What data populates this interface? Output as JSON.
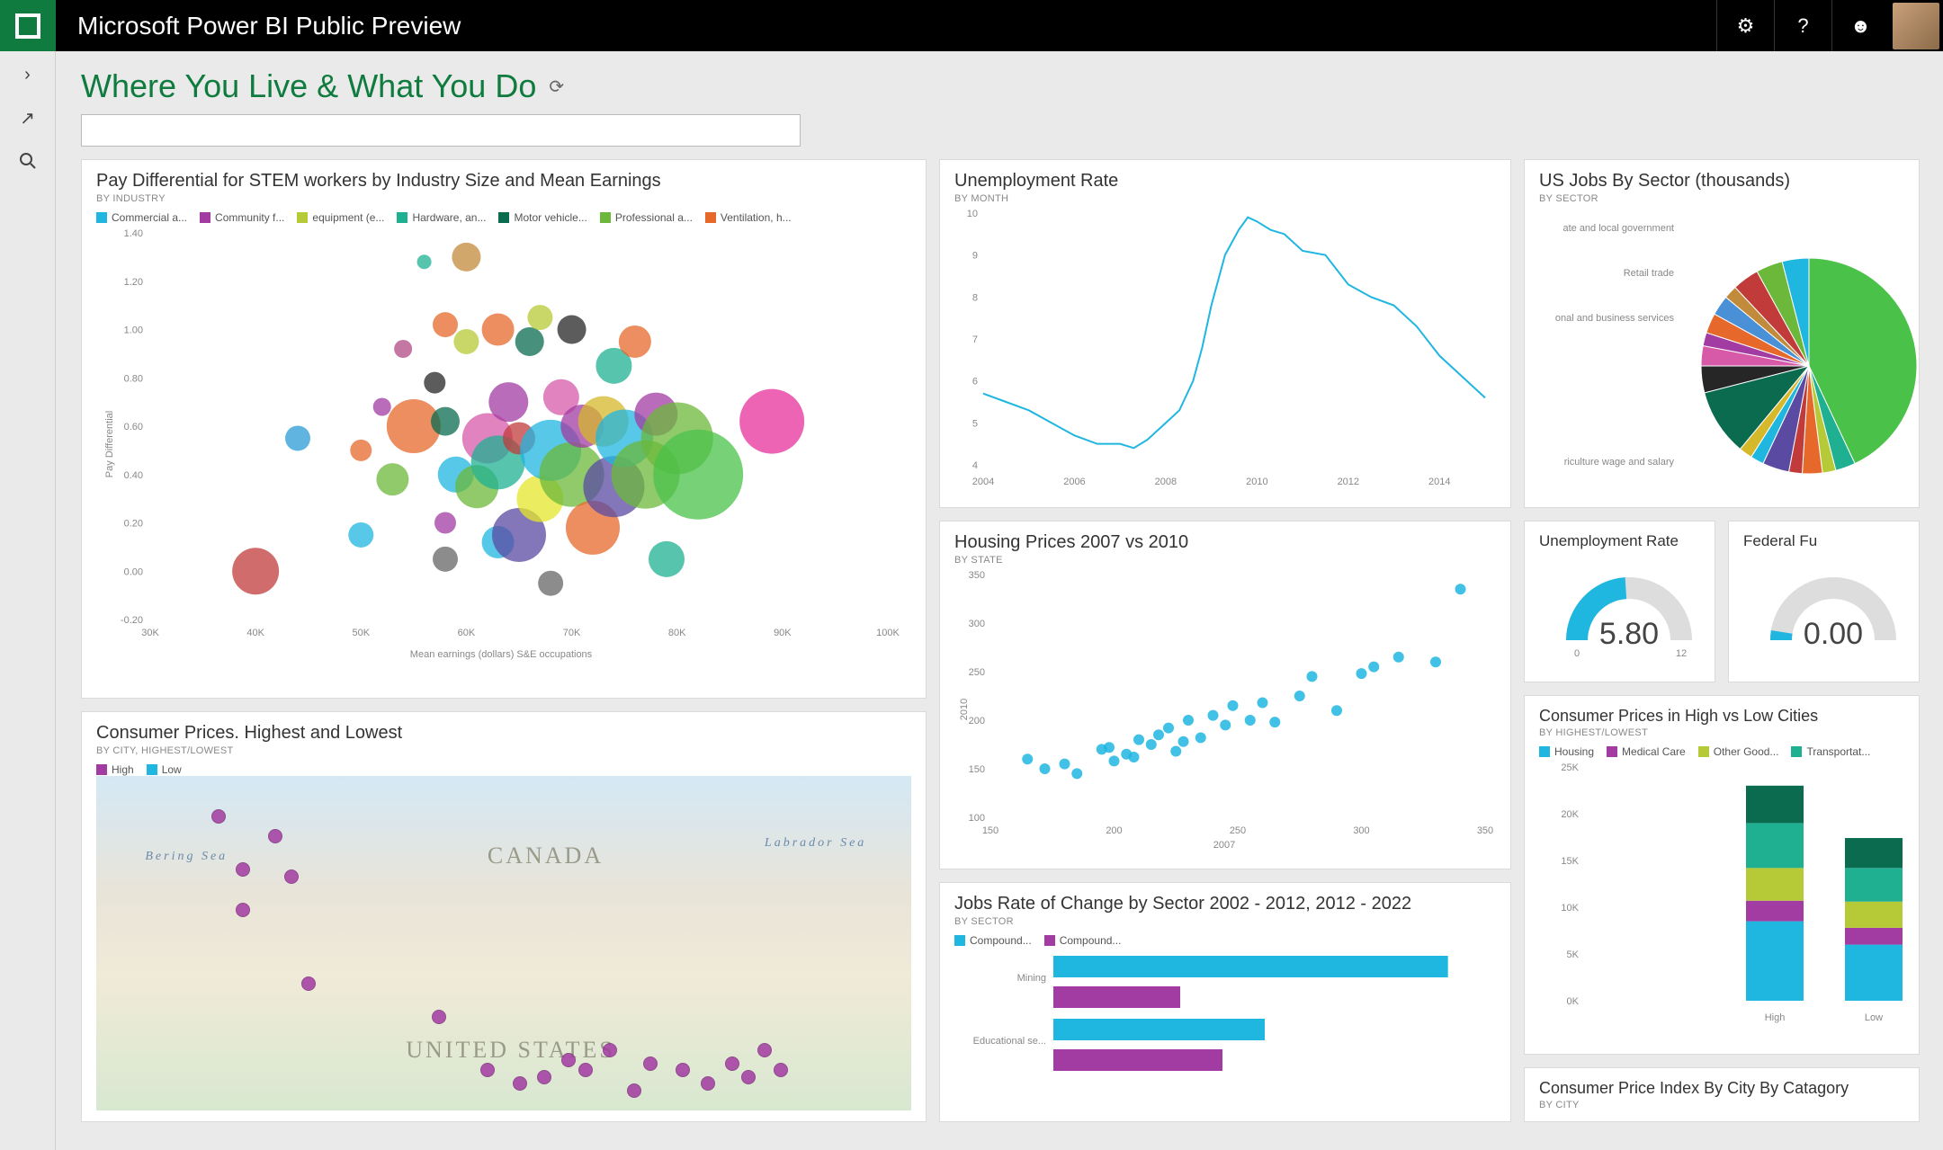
{
  "app": {
    "title": "Microsoft Power BI Public Preview"
  },
  "page": {
    "title": "Where You Live & What You Do"
  },
  "colors": {
    "accent": "#0f7b3e",
    "tile_bg": "#ffffff",
    "page_bg": "#eaeaea",
    "grid": "#e0e0e0",
    "axis": "#888888",
    "primary": "#1fb6e0",
    "secondary": "#a23ba2"
  },
  "pay_diff": {
    "title": "Pay Differential for STEM workers by Industry Size and Mean Earnings",
    "sub": "BY INDUSTRY",
    "xlabel": "Mean earnings (dollars) S&E occupations",
    "ylabel": "Pay Differential",
    "xlim": [
      30000,
      100000
    ],
    "xtick_step": 10000,
    "ylim": [
      -0.2,
      1.4
    ],
    "ytick_step": 0.2,
    "legend": [
      {
        "label": "Commercial a...",
        "color": "#1fb6e0"
      },
      {
        "label": "Community f...",
        "color": "#a23ba2"
      },
      {
        "label": "equipment (e...",
        "color": "#b6c936"
      },
      {
        "label": "Hardware, an...",
        "color": "#1fb091"
      },
      {
        "label": "Motor vehicle...",
        "color": "#0a6b4f"
      },
      {
        "label": "Professional a...",
        "color": "#6bb83a"
      },
      {
        "label": "Ventilation, h...",
        "color": "#e6682b"
      }
    ],
    "bubbles": [
      {
        "x": 40000,
        "y": 0.0,
        "r": 26,
        "c": "#c23b3b"
      },
      {
        "x": 44000,
        "y": 0.55,
        "r": 14,
        "c": "#2b9bd6"
      },
      {
        "x": 50000,
        "y": 0.5,
        "r": 12,
        "c": "#e6682b"
      },
      {
        "x": 50000,
        "y": 0.15,
        "r": 14,
        "c": "#1fb6e0"
      },
      {
        "x": 52000,
        "y": 0.68,
        "r": 10,
        "c": "#a23ba2"
      },
      {
        "x": 53000,
        "y": 0.38,
        "r": 18,
        "c": "#6bb83a"
      },
      {
        "x": 54000,
        "y": 0.92,
        "r": 10,
        "c": "#b24a86"
      },
      {
        "x": 55000,
        "y": 0.6,
        "r": 30,
        "c": "#e6682b"
      },
      {
        "x": 56000,
        "y": 1.28,
        "r": 8,
        "c": "#1fb091"
      },
      {
        "x": 57000,
        "y": 0.78,
        "r": 12,
        "c": "#262626"
      },
      {
        "x": 58000,
        "y": 0.2,
        "r": 12,
        "c": "#a23ba2"
      },
      {
        "x": 58000,
        "y": 0.62,
        "r": 16,
        "c": "#0a6b4f"
      },
      {
        "x": 58000,
        "y": 1.02,
        "r": 14,
        "c": "#e6682b"
      },
      {
        "x": 58000,
        "y": 0.05,
        "r": 14,
        "c": "#666"
      },
      {
        "x": 59000,
        "y": 0.4,
        "r": 20,
        "c": "#1fb6e0"
      },
      {
        "x": 60000,
        "y": 0.95,
        "r": 14,
        "c": "#b6c936"
      },
      {
        "x": 60000,
        "y": 1.3,
        "r": 16,
        "c": "#c28a3b"
      },
      {
        "x": 61000,
        "y": 0.35,
        "r": 24,
        "c": "#6bb83a"
      },
      {
        "x": 62000,
        "y": 0.55,
        "r": 28,
        "c": "#d65aa8"
      },
      {
        "x": 63000,
        "y": 0.45,
        "r": 30,
        "c": "#1fb091"
      },
      {
        "x": 63000,
        "y": 0.12,
        "r": 18,
        "c": "#1fb6e0"
      },
      {
        "x": 63000,
        "y": 1.0,
        "r": 18,
        "c": "#e6682b"
      },
      {
        "x": 64000,
        "y": 0.7,
        "r": 22,
        "c": "#a23ba2"
      },
      {
        "x": 65000,
        "y": 0.15,
        "r": 30,
        "c": "#5a4aa2"
      },
      {
        "x": 65000,
        "y": 0.55,
        "r": 18,
        "c": "#c23b3b"
      },
      {
        "x": 66000,
        "y": 0.95,
        "r": 16,
        "c": "#0a6b4f"
      },
      {
        "x": 67000,
        "y": 0.3,
        "r": 26,
        "c": "#e6e62b"
      },
      {
        "x": 67000,
        "y": 1.05,
        "r": 14,
        "c": "#b6c936"
      },
      {
        "x": 68000,
        "y": 0.5,
        "r": 34,
        "c": "#1fb6e0"
      },
      {
        "x": 68000,
        "y": -0.05,
        "r": 14,
        "c": "#666"
      },
      {
        "x": 69000,
        "y": 0.72,
        "r": 20,
        "c": "#d65aa8"
      },
      {
        "x": 70000,
        "y": 0.4,
        "r": 36,
        "c": "#6bb83a"
      },
      {
        "x": 70000,
        "y": 1.0,
        "r": 16,
        "c": "#262626"
      },
      {
        "x": 71000,
        "y": 0.6,
        "r": 24,
        "c": "#a23ba2"
      },
      {
        "x": 72000,
        "y": 0.18,
        "r": 30,
        "c": "#e6682b"
      },
      {
        "x": 73000,
        "y": 0.62,
        "r": 28,
        "c": "#d6b82b"
      },
      {
        "x": 74000,
        "y": 0.35,
        "r": 34,
        "c": "#5a4aa2"
      },
      {
        "x": 74000,
        "y": 0.85,
        "r": 20,
        "c": "#1fb091"
      },
      {
        "x": 75000,
        "y": 0.55,
        "r": 32,
        "c": "#1fb6e0"
      },
      {
        "x": 76000,
        "y": 0.95,
        "r": 18,
        "c": "#e6682b"
      },
      {
        "x": 77000,
        "y": 0.4,
        "r": 38,
        "c": "#6bb83a"
      },
      {
        "x": 78000,
        "y": 0.65,
        "r": 24,
        "c": "#a23ba2"
      },
      {
        "x": 79000,
        "y": 0.05,
        "r": 20,
        "c": "#1fb091"
      },
      {
        "x": 80000,
        "y": 0.55,
        "r": 40,
        "c": "#6bb83a"
      },
      {
        "x": 82000,
        "y": 0.4,
        "r": 50,
        "c": "#4ac24a"
      },
      {
        "x": 89000,
        "y": 0.62,
        "r": 36,
        "c": "#e6309a"
      }
    ]
  },
  "consumer_map": {
    "title": "Consumer Prices. Highest and Lowest",
    "sub": "BY CITY, HIGHEST/LOWEST",
    "legend": [
      {
        "label": "High",
        "color": "#a23ba2"
      },
      {
        "label": "Low",
        "color": "#1fb6e0"
      }
    ],
    "labels": {
      "canada": "CANADA",
      "us": "UNITED STATES",
      "bering": "Bering Sea",
      "labrador": "Labrador Sea"
    },
    "points": [
      {
        "x": 0.15,
        "y": 0.12,
        "c": "#a23ba2"
      },
      {
        "x": 0.22,
        "y": 0.18,
        "c": "#a23ba2"
      },
      {
        "x": 0.18,
        "y": 0.28,
        "c": "#a23ba2"
      },
      {
        "x": 0.24,
        "y": 0.3,
        "c": "#a23ba2"
      },
      {
        "x": 0.18,
        "y": 0.4,
        "c": "#a23ba2"
      },
      {
        "x": 0.26,
        "y": 0.62,
        "c": "#a23ba2"
      },
      {
        "x": 0.42,
        "y": 0.72,
        "c": "#a23ba2"
      },
      {
        "x": 0.48,
        "y": 0.88,
        "c": "#a23ba2"
      },
      {
        "x": 0.52,
        "y": 0.92,
        "c": "#a23ba2"
      },
      {
        "x": 0.55,
        "y": 0.9,
        "c": "#a23ba2"
      },
      {
        "x": 0.58,
        "y": 0.85,
        "c": "#a23ba2"
      },
      {
        "x": 0.6,
        "y": 0.88,
        "c": "#a23ba2"
      },
      {
        "x": 0.63,
        "y": 0.82,
        "c": "#a23ba2"
      },
      {
        "x": 0.66,
        "y": 0.94,
        "c": "#a23ba2"
      },
      {
        "x": 0.68,
        "y": 0.86,
        "c": "#a23ba2"
      },
      {
        "x": 0.72,
        "y": 0.88,
        "c": "#a23ba2"
      },
      {
        "x": 0.75,
        "y": 0.92,
        "c": "#a23ba2"
      },
      {
        "x": 0.78,
        "y": 0.86,
        "c": "#a23ba2"
      },
      {
        "x": 0.8,
        "y": 0.9,
        "c": "#a23ba2"
      },
      {
        "x": 0.82,
        "y": 0.82,
        "c": "#a23ba2"
      },
      {
        "x": 0.84,
        "y": 0.88,
        "c": "#a23ba2"
      }
    ]
  },
  "unemployment": {
    "title": "Unemployment Rate",
    "sub": "BY MONTH",
    "xlim": [
      2004,
      2015
    ],
    "xtick_step": 2,
    "ylim": [
      4,
      10
    ],
    "ytick_step": 1,
    "line_color": "#1fb6e0",
    "points": [
      [
        2004,
        5.7
      ],
      [
        2004.5,
        5.5
      ],
      [
        2005,
        5.3
      ],
      [
        2005.5,
        5.0
      ],
      [
        2006,
        4.7
      ],
      [
        2006.5,
        4.5
      ],
      [
        2007,
        4.5
      ],
      [
        2007.3,
        4.4
      ],
      [
        2007.6,
        4.6
      ],
      [
        2008,
        5.0
      ],
      [
        2008.3,
        5.3
      ],
      [
        2008.6,
        6.0
      ],
      [
        2008.8,
        6.8
      ],
      [
        2009,
        7.8
      ],
      [
        2009.3,
        9.0
      ],
      [
        2009.6,
        9.6
      ],
      [
        2009.8,
        9.9
      ],
      [
        2010,
        9.8
      ],
      [
        2010.3,
        9.6
      ],
      [
        2010.6,
        9.5
      ],
      [
        2011,
        9.1
      ],
      [
        2011.5,
        9.0
      ],
      [
        2012,
        8.3
      ],
      [
        2012.5,
        8.0
      ],
      [
        2013,
        7.8
      ],
      [
        2013.5,
        7.3
      ],
      [
        2014,
        6.6
      ],
      [
        2014.5,
        6.1
      ],
      [
        2015,
        5.6
      ]
    ]
  },
  "housing": {
    "title": "Housing Prices 2007 vs 2010",
    "sub": "BY STATE",
    "xlabel": "2007",
    "ylabel": "2010",
    "xlim": [
      150,
      350
    ],
    "xtick_step": 50,
    "ylim": [
      100,
      350
    ],
    "ytick_step": 50,
    "point_color": "#1fb6e0",
    "points": [
      [
        165,
        160
      ],
      [
        172,
        150
      ],
      [
        180,
        155
      ],
      [
        185,
        145
      ],
      [
        195,
        170
      ],
      [
        200,
        158
      ],
      [
        198,
        172
      ],
      [
        205,
        165
      ],
      [
        210,
        180
      ],
      [
        208,
        162
      ],
      [
        215,
        175
      ],
      [
        218,
        185
      ],
      [
        222,
        192
      ],
      [
        225,
        168
      ],
      [
        230,
        200
      ],
      [
        228,
        178
      ],
      [
        235,
        182
      ],
      [
        240,
        205
      ],
      [
        245,
        195
      ],
      [
        248,
        215
      ],
      [
        255,
        200
      ],
      [
        260,
        218
      ],
      [
        265,
        198
      ],
      [
        275,
        225
      ],
      [
        280,
        245
      ],
      [
        290,
        210
      ],
      [
        300,
        248
      ],
      [
        305,
        255
      ],
      [
        315,
        265
      ],
      [
        330,
        260
      ],
      [
        340,
        335
      ]
    ]
  },
  "jobs_rate": {
    "title": "Jobs Rate of Change by Sector 2002 - 2012, 2012 - 2022",
    "sub": "BY SECTOR",
    "legend": [
      {
        "label": "Compound...",
        "color": "#1fb6e0"
      },
      {
        "label": "Compound...",
        "color": "#a23ba2"
      }
    ],
    "categories": [
      "Mining",
      "Educational se..."
    ],
    "series": [
      {
        "color": "#1fb6e0",
        "values": [
          2.8,
          1.5
        ]
      },
      {
        "color": "#a23ba2",
        "values": [
          0.9,
          1.2
        ]
      }
    ],
    "xmax": 3.0
  },
  "pie": {
    "title": "US Jobs By Sector (thousands)",
    "sub": "BY SECTOR",
    "labels": [
      "ate and local government",
      "Retail trade",
      "onal and business services",
      "riculture wage and salary"
    ],
    "slices": [
      {
        "v": 43,
        "c": "#4ac24a"
      },
      {
        "v": 3,
        "c": "#1fb091"
      },
      {
        "v": 2,
        "c": "#b6c936"
      },
      {
        "v": 3,
        "c": "#e6682b"
      },
      {
        "v": 2,
        "c": "#c23b3b"
      },
      {
        "v": 4,
        "c": "#5a4aa2"
      },
      {
        "v": 2,
        "c": "#1fb6e0"
      },
      {
        "v": 2,
        "c": "#d6b82b"
      },
      {
        "v": 10,
        "c": "#0a6b4f"
      },
      {
        "v": 4,
        "c": "#262626"
      },
      {
        "v": 3,
        "c": "#d65aa8"
      },
      {
        "v": 2,
        "c": "#a23ba2"
      },
      {
        "v": 3,
        "c": "#e6682b"
      },
      {
        "v": 3,
        "c": "#4a90d6"
      },
      {
        "v": 2,
        "c": "#c28a3b"
      },
      {
        "v": 4,
        "c": "#c23b3b"
      },
      {
        "v": 4,
        "c": "#6bb83a"
      },
      {
        "v": 4,
        "c": "#1fb6e0"
      }
    ]
  },
  "gauge1": {
    "title": "Unemployment Rate",
    "value": "5.80",
    "min": "0",
    "max": "12",
    "fill": 0.48,
    "color": "#1fb6e0"
  },
  "gauge2": {
    "title": "Federal Fu",
    "value": "0.00",
    "fill": 0.05,
    "color": "#1fb6e0"
  },
  "stacked": {
    "title": "Consumer Prices in High vs Low Cities",
    "sub": "BY HIGHEST/LOWEST",
    "legend": [
      {
        "label": "Housing",
        "color": "#1fb6e0"
      },
      {
        "label": "Medical Care",
        "color": "#a23ba2"
      },
      {
        "label": "Other Good...",
        "color": "#b6c936"
      },
      {
        "label": "Transportat...",
        "color": "#1fb091"
      }
    ],
    "ylim": [
      0,
      25000
    ],
    "ytick_step": 5000,
    "categories": [
      "High",
      "Low"
    ],
    "stacks": [
      [
        {
          "v": 8500,
          "c": "#1fb6e0"
        },
        {
          "v": 2200,
          "c": "#a23ba2"
        },
        {
          "v": 3500,
          "c": "#b6c936"
        },
        {
          "v": 4800,
          "c": "#1fb091"
        },
        {
          "v": 4000,
          "c": "#0a6b4f"
        }
      ],
      [
        {
          "v": 6000,
          "c": "#1fb6e0"
        },
        {
          "v": 1800,
          "c": "#a23ba2"
        },
        {
          "v": 2800,
          "c": "#b6c936"
        },
        {
          "v": 3600,
          "c": "#1fb091"
        },
        {
          "v": 3200,
          "c": "#0a6b4f"
        }
      ]
    ]
  },
  "cpi_tile": {
    "title": "Consumer Price Index By City By Catagory",
    "sub": "BY CITY"
  }
}
